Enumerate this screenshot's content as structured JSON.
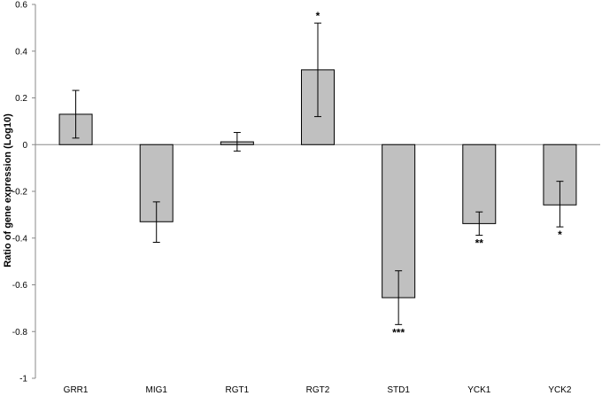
{
  "chart_data": {
    "type": "bar",
    "title": "",
    "xlabel": "",
    "ylabel": "Ratio of gene expression (Log10)",
    "ylim": [
      -1,
      0.6
    ],
    "yticks": [
      0.6,
      0.4,
      0.2,
      0,
      -0.2,
      -0.4,
      -0.6,
      -0.8,
      -1
    ],
    "ytick_labels": [
      "0.6",
      "0.4",
      "0.2",
      "0",
      "-0.2",
      "-0.4",
      "-0.6",
      "-0.8",
      "-1"
    ],
    "grid": false,
    "categories": [
      "GRR1",
      "MIG1",
      "RGT1",
      "RGT2",
      "STD1",
      "YCK1",
      "YCK2"
    ],
    "values": [
      0.13,
      -0.33,
      0.012,
      0.32,
      -0.655,
      -0.338,
      -0.258
    ],
    "error_low": [
      0.028,
      -0.418,
      -0.028,
      0.12,
      -0.77,
      -0.388,
      -0.352
    ],
    "error_high": [
      0.232,
      -0.245,
      0.052,
      0.52,
      -0.54,
      -0.288,
      -0.157
    ],
    "significance": [
      "",
      "",
      "",
      "*",
      "***",
      "**",
      "*"
    ],
    "bar_color": "#c0c0c0",
    "bar_edge_color": "#000000"
  }
}
